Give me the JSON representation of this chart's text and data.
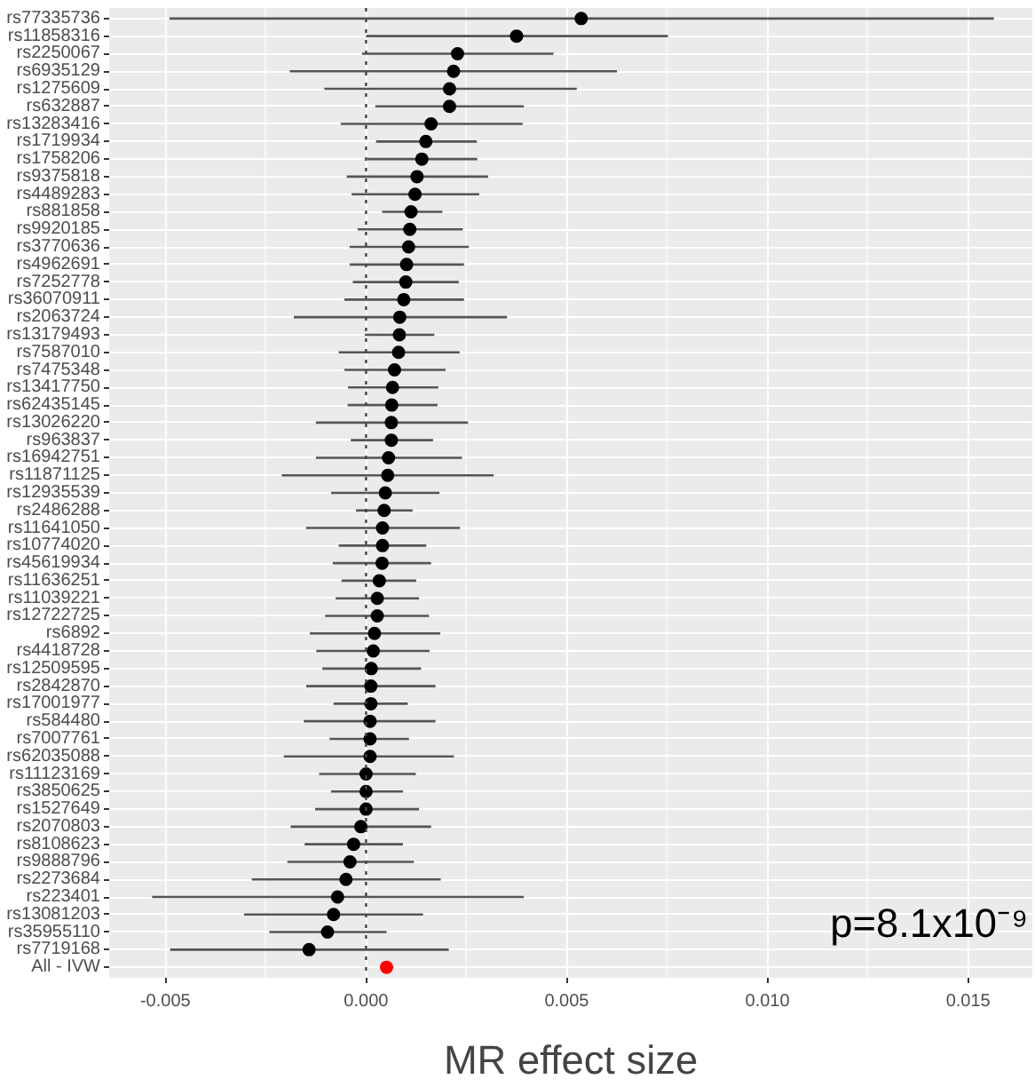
{
  "chart_data": {
    "type": "scatter",
    "orientation": "horizontal",
    "xlabel": "MR effect size",
    "categories": [
      "rs77335736",
      "rs11858316",
      "rs2250067",
      "rs6935129",
      "rs1275609",
      "rs632887",
      "rs13283416",
      "rs1719934",
      "rs1758206",
      "rs9375818",
      "rs4489283",
      "rs881858",
      "rs9920185",
      "rs3770636",
      "rs4962691",
      "rs7252778",
      "rs36070911",
      "rs2063724",
      "rs13179493",
      "rs7587010",
      "rs7475348",
      "rs13417750",
      "rs62435145",
      "rs13026220",
      "rs963837",
      "rs16942751",
      "rs11871125",
      "rs12935539",
      "rs2486288",
      "rs11641050",
      "rs10774020",
      "rs45619934",
      "rs11636251",
      "rs11039221",
      "rs12722725",
      "rs6892",
      "rs4418728",
      "rs12509595",
      "rs2842870",
      "rs17001977",
      "rs584480",
      "rs7007761",
      "rs62035088",
      "rs11123169",
      "rs3850625",
      "rs1527649",
      "rs2070803",
      "rs8108623",
      "rs9888796",
      "rs2273684",
      "rs223401",
      "rs13081203",
      "rs35955110",
      "rs7719168",
      "All - IVW"
    ],
    "values": [
      0.00536,
      0.00375,
      0.00228,
      0.00218,
      0.00208,
      0.00208,
      0.00162,
      0.00149,
      0.00139,
      0.00127,
      0.00122,
      0.00112,
      0.00109,
      0.00106,
      0.00101,
      0.00099,
      0.00094,
      0.00084,
      0.00083,
      0.00081,
      0.00071,
      0.00066,
      0.00064,
      0.00063,
      0.00063,
      0.00056,
      0.00054,
      0.00048,
      0.00045,
      0.00041,
      0.00041,
      0.0004,
      0.00033,
      0.00028,
      0.00028,
      0.00021,
      0.00018,
      0.00013,
      0.00012,
      0.00012,
      0.0001,
      0.0001,
      0.0001,
      0.0,
      0.0,
      0.0,
      -0.00013,
      -0.00031,
      -0.0004,
      -0.0005,
      -0.00071,
      -0.00081,
      -0.00096,
      -0.00142,
      0.00051
    ],
    "errors": [
      [
        -0.0049,
        0.01564
      ],
      [
        0.0,
        0.00752
      ],
      [
        -0.0001,
        0.00467
      ],
      [
        -0.0019,
        0.00625
      ],
      [
        -0.00104,
        0.00525
      ],
      [
        0.00023,
        0.00393
      ],
      [
        -0.00063,
        0.0039
      ],
      [
        0.00025,
        0.00276
      ],
      [
        3e-05,
        0.00277
      ],
      [
        -0.00048,
        0.00304
      ],
      [
        -0.00036,
        0.00282
      ],
      [
        0.0004,
        0.0019
      ],
      [
        -0.00021,
        0.00241
      ],
      [
        -0.00041,
        0.00256
      ],
      [
        -0.00041,
        0.00244
      ],
      [
        -0.00033,
        0.00231
      ],
      [
        -0.00054,
        0.00244
      ],
      [
        -0.0018,
        0.00351
      ],
      [
        -3e-05,
        0.0017
      ],
      [
        -0.00068,
        0.00233
      ],
      [
        -0.00054,
        0.00198
      ],
      [
        -0.00045,
        0.0018
      ],
      [
        -0.00046,
        0.00178
      ],
      [
        -0.00125,
        0.00254
      ],
      [
        -0.00038,
        0.00167
      ],
      [
        -0.00125,
        0.00239
      ],
      [
        -0.0021,
        0.00318
      ],
      [
        -0.00087,
        0.00183
      ],
      [
        -0.00025,
        0.00116
      ],
      [
        -0.00149,
        0.00234
      ],
      [
        -0.00068,
        0.0015
      ],
      [
        -0.00083,
        0.00162
      ],
      [
        -0.00061,
        0.00125
      ],
      [
        -0.00076,
        0.00132
      ],
      [
        -0.00102,
        0.00157
      ],
      [
        -0.0014,
        0.00185
      ],
      [
        -0.00124,
        0.00158
      ],
      [
        -0.00109,
        0.00137
      ],
      [
        -0.00149,
        0.00173
      ],
      [
        -0.00081,
        0.00104
      ],
      [
        -0.00155,
        0.00173
      ],
      [
        -0.00091,
        0.00107
      ],
      [
        -0.00205,
        0.00219
      ],
      [
        -0.00117,
        0.00124
      ],
      [
        -0.00087,
        0.00092
      ],
      [
        -0.00127,
        0.00132
      ],
      [
        -0.00188,
        0.00162
      ],
      [
        -0.00153,
        0.00092
      ],
      [
        -0.00196,
        0.00119
      ],
      [
        -0.00285,
        0.00186
      ],
      [
        -0.00533,
        0.00393
      ],
      [
        -0.00304,
        0.00142
      ],
      [
        -0.00241,
        0.00051
      ],
      [
        -0.00488,
        0.00206
      ],
      [
        0.00036,
        0.00068
      ]
    ],
    "colors": [
      "#000000",
      "#000000",
      "#000000",
      "#000000",
      "#000000",
      "#000000",
      "#000000",
      "#000000",
      "#000000",
      "#000000",
      "#000000",
      "#000000",
      "#000000",
      "#000000",
      "#000000",
      "#000000",
      "#000000",
      "#000000",
      "#000000",
      "#000000",
      "#000000",
      "#000000",
      "#000000",
      "#000000",
      "#000000",
      "#000000",
      "#000000",
      "#000000",
      "#000000",
      "#000000",
      "#000000",
      "#000000",
      "#000000",
      "#000000",
      "#000000",
      "#000000",
      "#000000",
      "#000000",
      "#000000",
      "#000000",
      "#000000",
      "#000000",
      "#000000",
      "#000000",
      "#000000",
      "#000000",
      "#000000",
      "#000000",
      "#000000",
      "#000000",
      "#000000",
      "#000000",
      "#000000",
      "#000000",
      "#ff0000"
    ],
    "xlim": [
      -0.0064,
      0.0166
    ],
    "xticks": [
      {
        "value": -0.005,
        "label": "-0.005"
      },
      {
        "value": 0,
        "label": "0.000"
      },
      {
        "value": 0.005,
        "label": "0.005"
      },
      {
        "value": 0.01,
        "label": "0.010"
      },
      {
        "value": 0.015,
        "label": "0.015"
      }
    ],
    "ref_lines": [
      {
        "axis": "x",
        "value": 0,
        "line_style": "dotted",
        "color": "#444444"
      }
    ],
    "annotations": [
      "p=8.1x10⁻⁹"
    ],
    "grid": true,
    "marker": "circle"
  }
}
